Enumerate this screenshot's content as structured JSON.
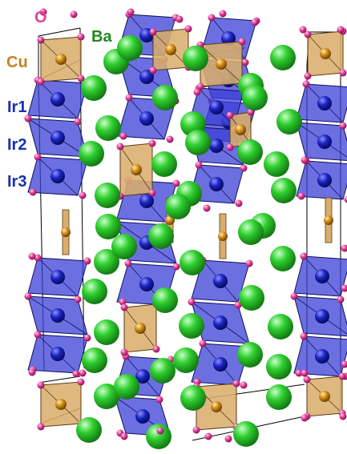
{
  "legend": {
    "o": {
      "text": "O",
      "color": "#e0409a"
    },
    "ba": {
      "text": "Ba",
      "color": "#1e8a1e"
    },
    "cu": {
      "text": "Cu",
      "color": "#c8821e"
    },
    "ir1": {
      "text": "Ir1",
      "color": "#1a2fb0"
    },
    "ir2": {
      "text": "Ir2",
      "color": "#1a2fb0"
    },
    "ir3": {
      "text": "Ir3",
      "color": "#1a2fb0"
    }
  },
  "colors": {
    "ba_atom": "#2fcf2f",
    "cu_polyhedron": "#d9ae6c",
    "cu_atom": "#d08a10",
    "ir_polyhedron": "#3b3fd6",
    "ir_atom": "#1a22c0",
    "o_atom": "#e0409a",
    "cell_edge": "#000000"
  },
  "icons": {
    "ba": "green-sphere",
    "cu": "gold-octahedron",
    "ir": "blue-octahedron",
    "o": "magenta-sphere"
  }
}
